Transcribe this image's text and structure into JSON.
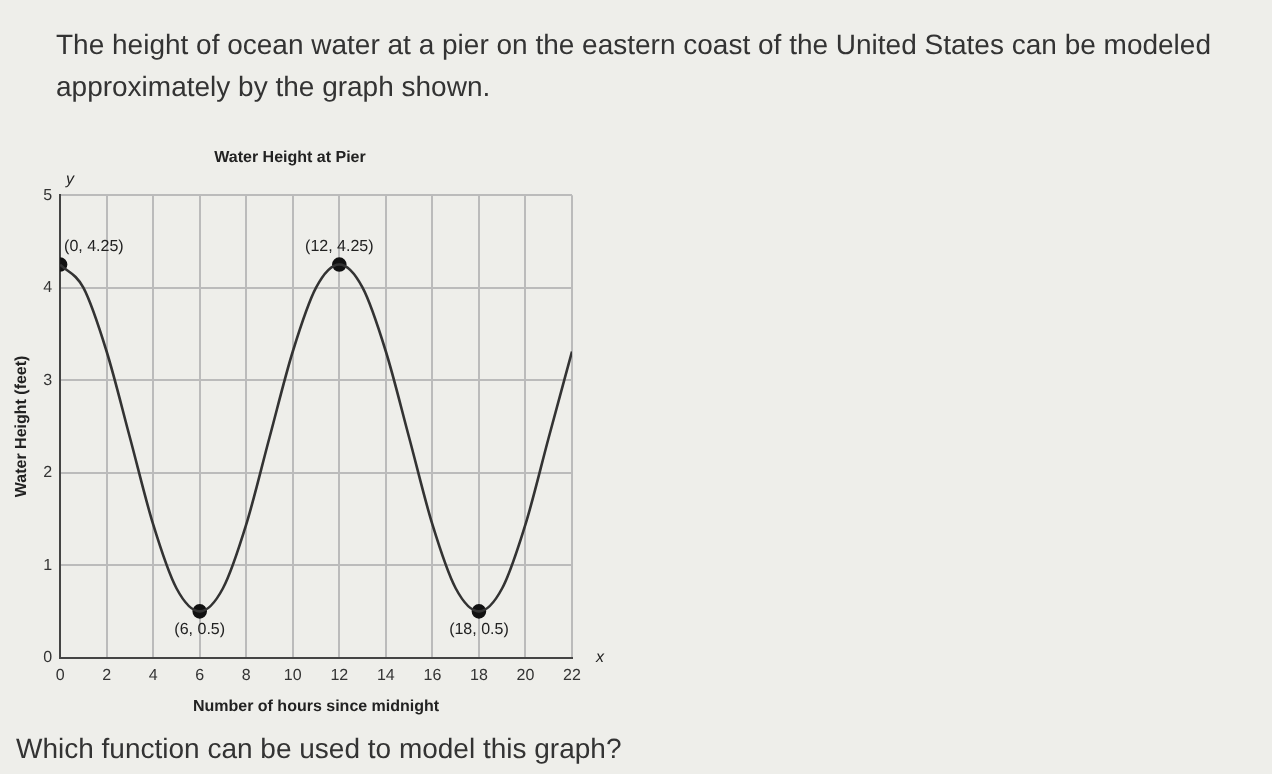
{
  "chart_data": {
    "type": "line",
    "title": "Water Height at Pier",
    "xlabel": "Number of hours since midnight",
    "ylabel": "Water Height (feet)",
    "x": [
      0,
      1,
      2,
      3,
      4,
      5,
      6,
      7,
      8,
      9,
      10,
      11,
      12,
      13,
      14,
      15,
      16,
      17,
      18,
      19,
      20,
      21,
      22
    ],
    "series": [
      {
        "type": "line",
        "color": "#333333",
        "marker": "none",
        "values": [
          4.25,
          4.0,
          3.31,
          2.38,
          1.44,
          0.75,
          0.5,
          0.75,
          1.44,
          2.38,
          3.31,
          4.0,
          4.25,
          4.0,
          3.31,
          2.38,
          1.44,
          0.75,
          0.5,
          0.75,
          1.44,
          2.38,
          3.31
        ]
      },
      {
        "type": "scatter",
        "color": "#111111",
        "marker": "circle",
        "x": [
          0,
          6,
          12,
          18
        ],
        "values": [
          4.25,
          0.5,
          4.25,
          0.5
        ]
      }
    ],
    "xlim": [
      0,
      22
    ],
    "ylim": [
      0,
      5
    ],
    "xticks": [
      0,
      2,
      4,
      6,
      8,
      10,
      12,
      14,
      16,
      18,
      20,
      22
    ],
    "yticks": [
      0,
      1,
      2,
      3,
      4,
      5
    ],
    "grid": true,
    "legend": false,
    "annotations": [
      "The height of ocean water at a pier on the eastern coast of the United States can be modeled approximately by the graph shown.",
      "Which function can be used to model this graph?",
      "y",
      "x",
      {
        "text": "(0, 4.25)",
        "x": 0,
        "y": 4.25
      },
      {
        "text": "(12, 4.25)",
        "x": 12,
        "y": 4.25
      },
      {
        "text": "(6, 0.5)",
        "x": 6,
        "y": 0.5
      },
      {
        "text": "(18, 0.5)",
        "x": 18,
        "y": 0.5
      }
    ]
  }
}
